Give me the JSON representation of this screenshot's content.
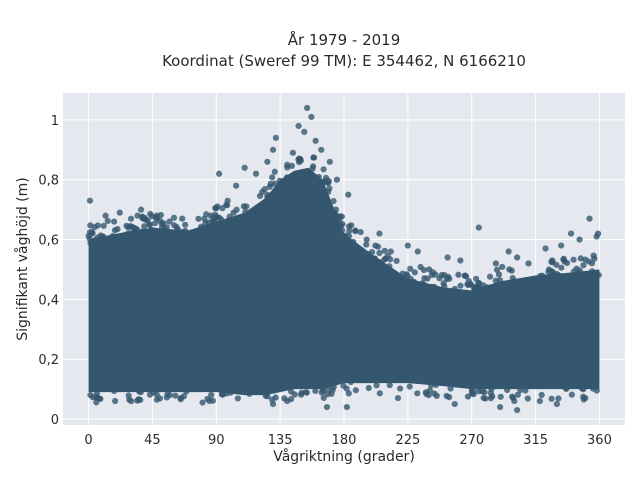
{
  "chart_data": {
    "type": "scatter",
    "title": "År 1979 - 2019",
    "subtitle": "Koordinat (Sweref 99 TM): E 354462, N 6166210",
    "xlabel": "Vågriktning (grader)",
    "ylabel": "Signifikant våghöjd (m)",
    "xlim": [
      -18,
      378
    ],
    "ylim": [
      -0.02,
      1.09
    ],
    "x_ticks": [
      0,
      45,
      90,
      135,
      180,
      225,
      270,
      315,
      360
    ],
    "y_ticks": [
      0,
      0.2,
      0.4,
      0.6,
      0.8,
      1
    ],
    "y_tick_labels": [
      "0",
      "0,2",
      "0,4",
      "0,6",
      "0,8",
      "1"
    ],
    "grid": true,
    "colors": {
      "marker": "#34566e",
      "plot_bg": "#e5e8ef",
      "grid": "#ffffff"
    },
    "envelope": {
      "x": [
        0,
        20,
        45,
        70,
        90,
        110,
        125,
        135,
        145,
        155,
        165,
        180,
        200,
        225,
        250,
        270,
        290,
        315,
        340,
        360
      ],
      "upper": [
        0.6,
        0.62,
        0.64,
        0.63,
        0.66,
        0.69,
        0.74,
        0.8,
        0.83,
        0.84,
        0.8,
        0.62,
        0.55,
        0.47,
        0.44,
        0.43,
        0.46,
        0.48,
        0.49,
        0.5
      ],
      "lower": [
        0.09,
        0.09,
        0.09,
        0.09,
        0.09,
        0.08,
        0.08,
        0.09,
        0.1,
        0.1,
        0.1,
        0.12,
        0.12,
        0.12,
        0.11,
        0.1,
        0.1,
        0.1,
        0.1,
        0.1
      ]
    },
    "outliers": [
      {
        "x": 1,
        "y": 0.73
      },
      {
        "x": 5,
        "y": 0.6
      },
      {
        "x": 12,
        "y": 0.68
      },
      {
        "x": 18,
        "y": 0.66
      },
      {
        "x": 22,
        "y": 0.69
      },
      {
        "x": 28,
        "y": 0.64
      },
      {
        "x": 37,
        "y": 0.7
      },
      {
        "x": 48,
        "y": 0.68
      },
      {
        "x": 57,
        "y": 0.66
      },
      {
        "x": 66,
        "y": 0.67
      },
      {
        "x": 76,
        "y": 0.62
      },
      {
        "x": 86,
        "y": 0.68
      },
      {
        "x": 92,
        "y": 0.82
      },
      {
        "x": 98,
        "y": 0.73
      },
      {
        "x": 104,
        "y": 0.78
      },
      {
        "x": 110,
        "y": 0.84
      },
      {
        "x": 118,
        "y": 0.82
      },
      {
        "x": 126,
        "y": 0.86
      },
      {
        "x": 130,
        "y": 0.9
      },
      {
        "x": 132,
        "y": 0.94
      },
      {
        "x": 140,
        "y": 0.85
      },
      {
        "x": 144,
        "y": 0.89
      },
      {
        "x": 148,
        "y": 0.98
      },
      {
        "x": 152,
        "y": 0.96
      },
      {
        "x": 154,
        "y": 1.04
      },
      {
        "x": 157,
        "y": 1.01
      },
      {
        "x": 160,
        "y": 0.93
      },
      {
        "x": 164,
        "y": 0.9
      },
      {
        "x": 170,
        "y": 0.86
      },
      {
        "x": 175,
        "y": 0.8
      },
      {
        "x": 183,
        "y": 0.75
      },
      {
        "x": 188,
        "y": 0.63
      },
      {
        "x": 196,
        "y": 0.6
      },
      {
        "x": 205,
        "y": 0.62
      },
      {
        "x": 213,
        "y": 0.56
      },
      {
        "x": 225,
        "y": 0.58
      },
      {
        "x": 232,
        "y": 0.56
      },
      {
        "x": 240,
        "y": 0.5
      },
      {
        "x": 253,
        "y": 0.54
      },
      {
        "x": 262,
        "y": 0.53
      },
      {
        "x": 275,
        "y": 0.64
      },
      {
        "x": 287,
        "y": 0.52
      },
      {
        "x": 296,
        "y": 0.56
      },
      {
        "x": 302,
        "y": 0.54
      },
      {
        "x": 310,
        "y": 0.52
      },
      {
        "x": 322,
        "y": 0.57
      },
      {
        "x": 333,
        "y": 0.58
      },
      {
        "x": 340,
        "y": 0.62
      },
      {
        "x": 346,
        "y": 0.6
      },
      {
        "x": 353,
        "y": 0.67
      },
      {
        "x": 358,
        "y": 0.61
      },
      {
        "x": 359,
        "y": 0.62
      },
      {
        "x": 30,
        "y": 0.06
      },
      {
        "x": 65,
        "y": 0.07
      },
      {
        "x": 130,
        "y": 0.05
      },
      {
        "x": 140,
        "y": 0.06
      },
      {
        "x": 168,
        "y": 0.04
      },
      {
        "x": 182,
        "y": 0.04
      },
      {
        "x": 218,
        "y": 0.07
      },
      {
        "x": 258,
        "y": 0.05
      },
      {
        "x": 290,
        "y": 0.04
      },
      {
        "x": 300,
        "y": 0.06
      },
      {
        "x": 302,
        "y": 0.03
      },
      {
        "x": 318,
        "y": 0.06
      },
      {
        "x": 330,
        "y": 0.05
      },
      {
        "x": 350,
        "y": 0.07
      }
    ]
  }
}
